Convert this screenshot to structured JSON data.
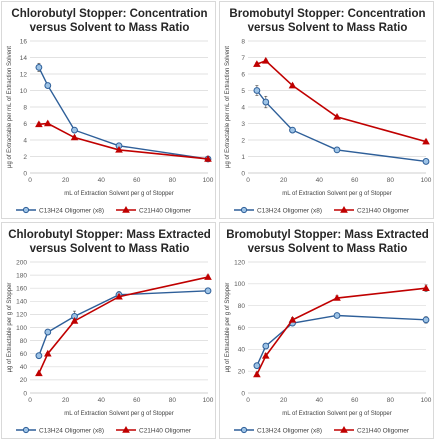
{
  "colors": {
    "blue": "#2e5f99",
    "blue_fill": "#9dc3e6",
    "red": "#c00000",
    "grid": "#d9d9d9",
    "axis": "#bfbfbf"
  },
  "chart_data": [
    {
      "type": "line",
      "title": [
        "Chlorobutyl Stopper: Concentration",
        "versus Solvent to Mass Ratio"
      ],
      "xlabel": "mL of Extraction Solvent per g of Stopper",
      "ylabel": "µg of Extractable per mL of Extraction Solvent",
      "xlim": [
        0,
        100
      ],
      "xticks": [
        0,
        20,
        40,
        60,
        80,
        100
      ],
      "ylim": [
        0,
        16
      ],
      "yticks": [
        0,
        2,
        4,
        6,
        8,
        10,
        12,
        14,
        16
      ],
      "grid": true,
      "legend": "bottom",
      "series": [
        {
          "name": "C13H24 Oligomer (x8)",
          "marker": "circle",
          "x": [
            5,
            10,
            25,
            50,
            100
          ],
          "y": [
            12.8,
            10.6,
            5.2,
            3.3,
            1.7
          ],
          "err": [
            0.5,
            0.1,
            0.3,
            0.1,
            0.1
          ]
        },
        {
          "name": "C21H40 Oligomer",
          "marker": "triangle",
          "x": [
            5,
            10,
            25,
            50,
            100
          ],
          "y": [
            5.9,
            6.0,
            4.3,
            2.8,
            1.7
          ],
          "err": [
            0.2,
            0.2,
            0.2,
            0.1,
            0.1
          ]
        }
      ]
    },
    {
      "type": "line",
      "title": [
        "Bromobutyl Stopper: Concentration",
        "versus Solvent to Mass Ratio"
      ],
      "xlabel": "mL of Extraction Solvent per g of Stopper",
      "ylabel": "µg of Extractable per mL of Extraction Solvent",
      "xlim": [
        0,
        100
      ],
      "xticks": [
        0,
        20,
        40,
        60,
        80,
        100
      ],
      "ylim": [
        0,
        8
      ],
      "yticks": [
        0,
        1,
        2,
        3,
        4,
        5,
        6,
        7,
        8
      ],
      "grid": true,
      "legend": "bottom",
      "series": [
        {
          "name": "C13H24 Oligomer (x8)",
          "marker": "circle",
          "x": [
            5,
            10,
            25,
            50,
            100
          ],
          "y": [
            5.0,
            4.3,
            2.6,
            1.4,
            0.7
          ],
          "err": [
            0.3,
            0.35,
            0.05,
            0.05,
            0.05
          ]
        },
        {
          "name": "C21H40 Oligomer",
          "marker": "triangle",
          "x": [
            5,
            10,
            25,
            50,
            100
          ],
          "y": [
            6.6,
            6.8,
            5.3,
            3.4,
            1.9
          ],
          "err": [
            0.1,
            0.1,
            0.1,
            0.1,
            0.1
          ]
        }
      ]
    },
    {
      "type": "line",
      "title": [
        "Chlorobutyl Stopper: Mass Extracted",
        "versus Solvent to Mass Ratio"
      ],
      "xlabel": "mL of Extraction Solvent per g of Stopper",
      "ylabel": "µg of Extractable per g of Stopper",
      "xlim": [
        0,
        100
      ],
      "xticks": [
        0,
        20,
        40,
        60,
        80,
        100
      ],
      "ylim": [
        0,
        200
      ],
      "yticks": [
        0,
        20,
        40,
        60,
        80,
        100,
        120,
        140,
        160,
        180,
        200
      ],
      "grid": true,
      "legend": "bottom",
      "series": [
        {
          "name": "C13H24 Oligomer (x8)",
          "marker": "circle",
          "x": [
            5,
            10,
            25,
            50,
            100
          ],
          "y": [
            57,
            93,
            117,
            150,
            156
          ],
          "err": [
            3,
            3,
            8,
            5,
            3
          ]
        },
        {
          "name": "C21H40 Oligomer",
          "marker": "triangle",
          "x": [
            5,
            10,
            25,
            50,
            100
          ],
          "y": [
            30,
            60,
            110,
            147,
            177
          ],
          "err": [
            2,
            2,
            3,
            3,
            3
          ]
        }
      ]
    },
    {
      "type": "line",
      "title": [
        "Bromobutyl Stopper: Mass Extracted",
        "versus Solvent to Mass Ratio"
      ],
      "xlabel": "mL of Extraction Solvent per g of Stopper",
      "ylabel": "µg of Extractable per g of Stopper",
      "xlim": [
        0,
        100
      ],
      "xticks": [
        0,
        20,
        40,
        60,
        80,
        100
      ],
      "ylim": [
        0,
        120
      ],
      "yticks": [
        0,
        20,
        40,
        60,
        80,
        100,
        120
      ],
      "grid": true,
      "legend": "bottom",
      "series": [
        {
          "name": "C13H24 Oligomer (x8)",
          "marker": "circle",
          "x": [
            5,
            10,
            25,
            50,
            100
          ],
          "y": [
            25,
            43,
            64,
            71,
            67
          ],
          "err": [
            2,
            2,
            2,
            2,
            3
          ]
        },
        {
          "name": "C21H40 Oligomer",
          "marker": "triangle",
          "x": [
            5,
            10,
            25,
            50,
            100
          ],
          "y": [
            17,
            34,
            67,
            87,
            96
          ],
          "err": [
            2,
            2,
            2,
            2,
            3
          ]
        }
      ]
    }
  ]
}
